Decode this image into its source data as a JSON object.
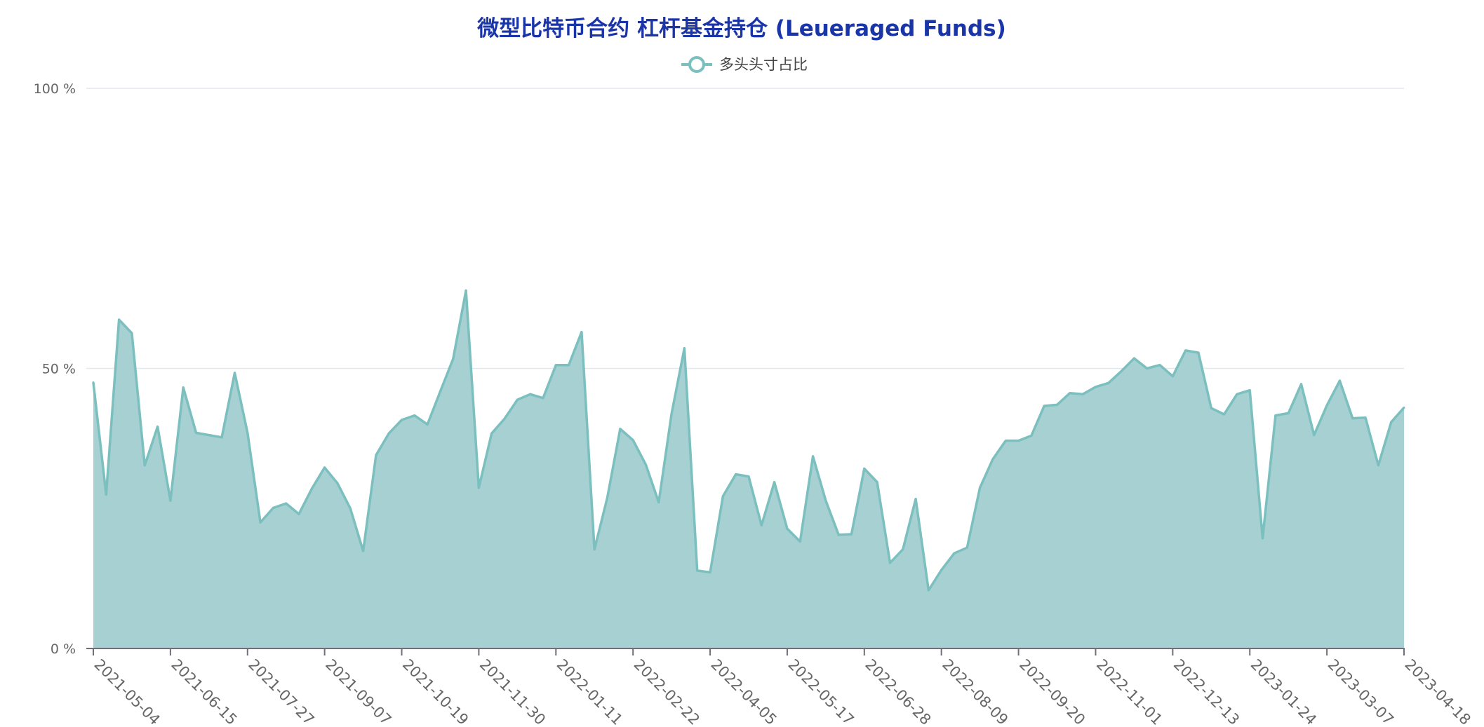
{
  "chart_data": {
    "type": "area",
    "title": "微型比特币合约 杠杆基金持仓 (Leueraged Funds)",
    "xlabel": "",
    "ylabel": "",
    "legend": {
      "position": "top-center",
      "entries": [
        "多头头寸占比"
      ]
    },
    "grid": true,
    "ylim": [
      0,
      100
    ],
    "y_ticks": [
      "0 %",
      "50 %",
      "100 %"
    ],
    "y_tick_values": [
      0,
      50,
      100
    ],
    "x_start": "2021-05-04",
    "x_end": "2023-04-18",
    "x_ticks": [
      "2021-05-04",
      "2021-06-15",
      "2021-07-27",
      "2021-09-07",
      "2021-10-19",
      "2021-11-30",
      "2022-01-11",
      "2022-02-22",
      "2022-04-05",
      "2022-05-17",
      "2022-06-28",
      "2022-08-09",
      "2022-09-20",
      "2022-11-01",
      "2022-12-13",
      "2023-01-24",
      "2023-03-07",
      "2023-04-18"
    ],
    "colors": {
      "line": "#7bbfbf",
      "area": "#a6d0d1",
      "title": "#1a35a8",
      "grid": "#e3e8ef",
      "axis": "#6e7079"
    },
    "series": [
      {
        "name": "多头头寸占比",
        "values": [
          47.5,
          27.5,
          58.7,
          56.3,
          32.7,
          39.6,
          26.4,
          46.6,
          38.5,
          38.1,
          37.7,
          49.2,
          38.5,
          22.5,
          25.1,
          25.9,
          24.0,
          28.5,
          32.3,
          29.5,
          25.0,
          17.4,
          34.5,
          38.4,
          40.8,
          41.6,
          40.0,
          45.9,
          51.7,
          63.9,
          28.7,
          38.4,
          41.0,
          44.4,
          45.4,
          44.7,
          50.6,
          50.6,
          56.5,
          17.7,
          26.9,
          39.2,
          37.2,
          32.8,
          26.1,
          41.9,
          53.6,
          13.9,
          13.6,
          27.2,
          31.1,
          30.7,
          22.0,
          29.7,
          21.4,
          19.1,
          34.3,
          26.4,
          20.3,
          20.4,
          32.1,
          29.7,
          15.3,
          17.7,
          26.7,
          10.4,
          14.0,
          17.0,
          18.0,
          28.7,
          33.8,
          37.1,
          37.1,
          38.0,
          43.3,
          43.5,
          45.6,
          45.4,
          46.7,
          47.4,
          49.5,
          51.8,
          50.0,
          50.6,
          48.6,
          53.2,
          52.8,
          42.9,
          41.8,
          45.4,
          46.1,
          19.7,
          41.6,
          42.0,
          47.2,
          38.1,
          43.4,
          47.8,
          41.1,
          41.2,
          32.7,
          40.4,
          43.0
        ]
      }
    ]
  }
}
